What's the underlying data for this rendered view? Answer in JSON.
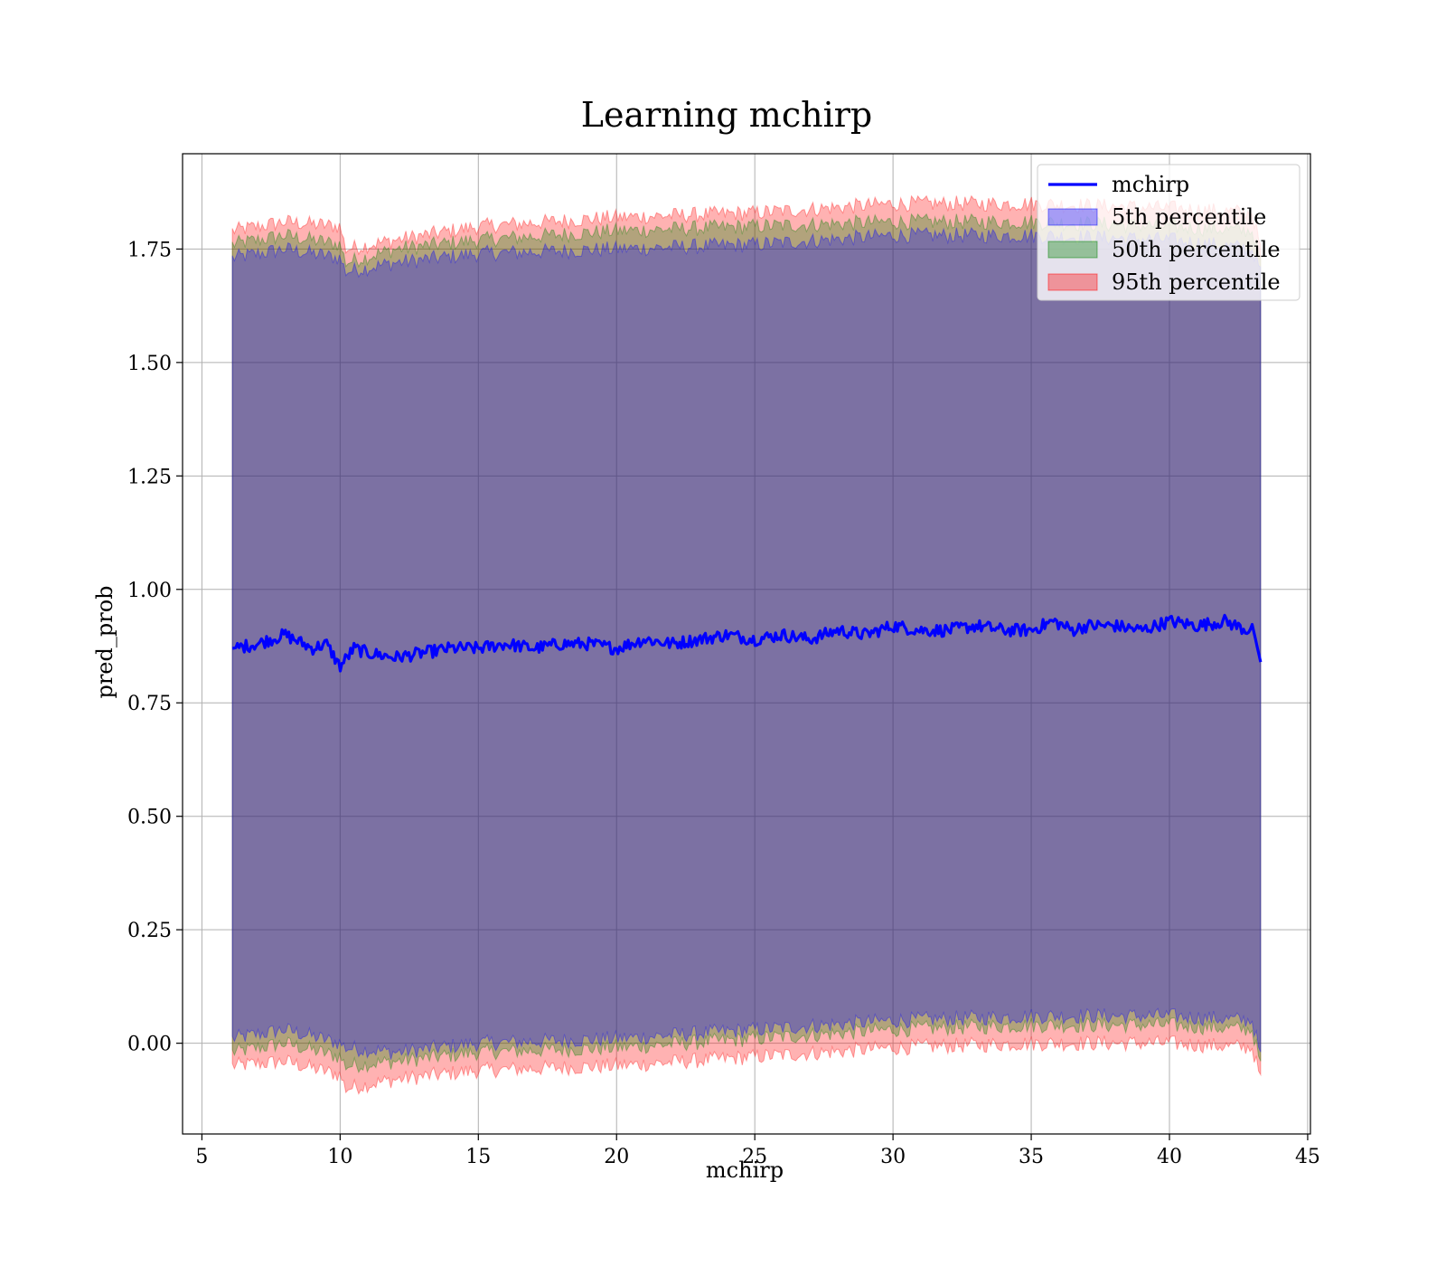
{
  "chart_data": {
    "type": "line",
    "title": "Learning mchirp",
    "xlabel": "mchirp",
    "ylabel": "pred_prob",
    "xlim": [
      4.3,
      45.1
    ],
    "ylim": [
      -0.2,
      1.96
    ],
    "xticks": [
      5,
      10,
      15,
      20,
      25,
      30,
      35,
      40,
      45
    ],
    "xtick_labels": [
      "5",
      "10",
      "15",
      "20",
      "25",
      "30",
      "35",
      "40",
      "45"
    ],
    "yticks": [
      0.0,
      0.25,
      0.5,
      0.75,
      1.0,
      1.25,
      1.5,
      1.75
    ],
    "ytick_labels": [
      "0.00",
      "0.25",
      "0.50",
      "0.75",
      "1.00",
      "1.25",
      "1.50",
      "1.75"
    ],
    "grid": true,
    "legend_position": "top-right",
    "colors": {
      "line": "#0000ff",
      "band_5th": "#0000ff",
      "band_50th": "#008000",
      "band_95th": "#ff0000",
      "grid": "#b0b0b0"
    },
    "line_series": {
      "name": "mchirp",
      "x": [
        6.1,
        7.0,
        8.0,
        9.0,
        9.5,
        10.0,
        10.5,
        11.0,
        12.0,
        13.0,
        14.0,
        15.0,
        16.0,
        17.0,
        18.0,
        19.0,
        20.0,
        21.0,
        22.0,
        23.0,
        24.0,
        25.0,
        26.0,
        27.0,
        28.0,
        29.0,
        30.0,
        31.0,
        32.0,
        33.0,
        34.0,
        35.0,
        35.8,
        36.5,
        37.0,
        38.0,
        39.0,
        40.0,
        41.0,
        42.0,
        42.8,
        43.0,
        43.3
      ],
      "y": [
        0.87,
        0.88,
        0.9,
        0.87,
        0.88,
        0.83,
        0.87,
        0.86,
        0.85,
        0.86,
        0.87,
        0.87,
        0.88,
        0.87,
        0.88,
        0.88,
        0.87,
        0.89,
        0.88,
        0.89,
        0.9,
        0.89,
        0.9,
        0.89,
        0.91,
        0.9,
        0.92,
        0.91,
        0.91,
        0.92,
        0.91,
        0.91,
        0.93,
        0.91,
        0.92,
        0.92,
        0.91,
        0.93,
        0.92,
        0.93,
        0.91,
        0.92,
        0.84
      ]
    },
    "band_series": [
      {
        "name": "5th percentile",
        "x": [
          6.1,
          8.0,
          10.0,
          10.2,
          12.0,
          15.0,
          20.0,
          25.0,
          30.0,
          35.0,
          40.0,
          43.0,
          43.3
        ],
        "lower": [
          0.01,
          0.03,
          0.0,
          -0.01,
          -0.02,
          0.0,
          0.01,
          0.03,
          0.05,
          0.06,
          0.06,
          0.05,
          -0.03
        ],
        "upper": [
          1.73,
          1.75,
          1.73,
          1.7,
          1.72,
          1.74,
          1.75,
          1.76,
          1.78,
          1.78,
          1.77,
          1.75,
          1.7
        ]
      },
      {
        "name": "50th percentile",
        "x": [
          6.1,
          8.0,
          10.0,
          10.2,
          12.0,
          15.0,
          20.0,
          25.0,
          30.0,
          35.0,
          40.0,
          43.0,
          43.3
        ],
        "lower": [
          -0.02,
          0.0,
          -0.03,
          -0.05,
          -0.04,
          -0.02,
          -0.01,
          0.01,
          0.03,
          0.04,
          0.04,
          0.03,
          -0.05
        ],
        "upper": [
          1.76,
          1.78,
          1.76,
          1.72,
          1.75,
          1.77,
          1.79,
          1.8,
          1.81,
          1.81,
          1.8,
          1.79,
          1.72
        ]
      },
      {
        "name": "95th percentile",
        "x": [
          6.1,
          8.0,
          10.0,
          10.2,
          12.0,
          15.0,
          20.0,
          25.0,
          30.0,
          35.0,
          40.0,
          43.0,
          43.3
        ],
        "lower": [
          -0.05,
          -0.04,
          -0.07,
          -0.1,
          -0.08,
          -0.06,
          -0.05,
          -0.03,
          -0.01,
          0.0,
          0.0,
          -0.01,
          -0.08
        ],
        "upper": [
          1.79,
          1.81,
          1.8,
          1.75,
          1.77,
          1.8,
          1.82,
          1.83,
          1.85,
          1.85,
          1.84,
          1.83,
          1.75
        ]
      }
    ]
  }
}
